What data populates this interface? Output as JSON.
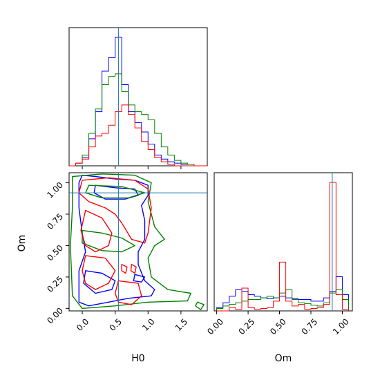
{
  "chart_data": [
    {
      "panel": "H0 marginal",
      "type": "histogram",
      "x_range": [
        -0.2,
        1.9
      ],
      "x_ticks": [
        0.0,
        0.5,
        1.0,
        1.5
      ],
      "truth_line": 0.55,
      "bin_edges": [
        -0.2,
        -0.1,
        0.0,
        0.1,
        0.2,
        0.3,
        0.4,
        0.5,
        0.6,
        0.7,
        0.8,
        0.9,
        1.0,
        1.1,
        1.2,
        1.3,
        1.4,
        1.5,
        1.6,
        1.7,
        1.8,
        1.9
      ],
      "series": [
        {
          "name": "blue",
          "color": "#0000ff",
          "counts": [
            0,
            2,
            6,
            20,
            40,
            70,
            80,
            95,
            60,
            40,
            32,
            25,
            16,
            8,
            5,
            3,
            2,
            1,
            1,
            0,
            0
          ]
        },
        {
          "name": "green",
          "color": "#008000",
          "counts": [
            0,
            2,
            8,
            24,
            42,
            60,
            66,
            68,
            55,
            45,
            40,
            38,
            34,
            24,
            14,
            8,
            4,
            2,
            1,
            0,
            0
          ]
        },
        {
          "name": "red",
          "color": "#ff0000",
          "counts": [
            0,
            2,
            5,
            14,
            22,
            24,
            30,
            40,
            45,
            38,
            28,
            18,
            12,
            6,
            3,
            1,
            0,
            0,
            0,
            0,
            0
          ]
        }
      ]
    },
    {
      "panel": "Om marginal",
      "type": "histogram",
      "x_range": [
        -0.02,
        1.08
      ],
      "x_ticks": [
        0.0,
        0.25,
        0.5,
        0.75,
        1.0
      ],
      "tick_labels": [
        "0.00",
        "0.25",
        "0.50",
        "0.75",
        "1.00"
      ],
      "xlabel": "Om",
      "truth_line": 0.92,
      "bin_edges": [
        0.0,
        0.05,
        0.1,
        0.15,
        0.2,
        0.25,
        0.3,
        0.35,
        0.4,
        0.45,
        0.5,
        0.55,
        0.6,
        0.65,
        0.7,
        0.75,
        0.8,
        0.85,
        0.9,
        0.95,
        1.0,
        1.05
      ],
      "series": [
        {
          "name": "blue",
          "color": "#0000ff",
          "counts": [
            4,
            10,
            18,
            26,
            24,
            20,
            18,
            16,
            15,
            16,
            18,
            16,
            15,
            14,
            14,
            12,
            12,
            16,
            24,
            42,
            20
          ]
        },
        {
          "name": "green",
          "color": "#008000",
          "counts": [
            3,
            6,
            8,
            10,
            12,
            14,
            14,
            16,
            18,
            16,
            22,
            26,
            14,
            10,
            9,
            7,
            6,
            10,
            22,
            26,
            14
          ]
        },
        {
          "name": "red",
          "color": "#ff0000",
          "counts": [
            0,
            0,
            4,
            2,
            28,
            4,
            2,
            3,
            4,
            12,
            60,
            12,
            6,
            8,
            2,
            3,
            4,
            8,
            158,
            20,
            2
          ]
        }
      ]
    },
    {
      "panel": "H0 vs Om joint",
      "type": "contour",
      "x_range": [
        -0.2,
        1.9
      ],
      "y_range": [
        -0.02,
        1.08
      ],
      "x_ticks": [
        0.0,
        0.5,
        1.0,
        1.5
      ],
      "y_ticks": [
        0.0,
        0.25,
        0.5,
        0.75,
        1.0
      ],
      "tick_labels_x": [
        "0.0",
        "0.5",
        "1.0",
        "1.5"
      ],
      "tick_labels_y": [
        "0.00",
        "0.25",
        "0.50",
        "0.75",
        "1.00"
      ],
      "xlabel": "H0",
      "ylabel": "Om",
      "truth_point": [
        0.55,
        0.92
      ],
      "series": [
        {
          "name": "blue",
          "color": "#0000ff",
          "contours": [
            [
              [
                0.0,
                1.06
              ],
              [
                0.2,
                1.05
              ],
              [
                0.5,
                1.03
              ],
              [
                0.8,
                1.02
              ],
              [
                1.0,
                0.98
              ],
              [
                1.0,
                0.9
              ],
              [
                0.9,
                0.82
              ],
              [
                0.95,
                0.7
              ],
              [
                0.95,
                0.55
              ],
              [
                0.85,
                0.45
              ],
              [
                0.85,
                0.35
              ],
              [
                0.95,
                0.22
              ],
              [
                1.1,
                0.15
              ],
              [
                1.05,
                0.1
              ],
              [
                0.7,
                0.08
              ],
              [
                0.4,
                0.05
              ],
              [
                0.1,
                0.02
              ],
              [
                -0.05,
                0.05
              ],
              [
                -0.05,
                0.3
              ],
              [
                0.05,
                0.45
              ],
              [
                0.0,
                0.6
              ],
              [
                -0.05,
                0.8
              ],
              [
                -0.05,
                1.0
              ],
              [
                0.0,
                1.06
              ]
            ],
            [
              [
                0.2,
                0.98
              ],
              [
                0.5,
                0.96
              ],
              [
                0.8,
                0.95
              ],
              [
                0.85,
                0.9
              ],
              [
                0.65,
                0.87
              ],
              [
                0.35,
                0.87
              ],
              [
                0.18,
                0.92
              ],
              [
                0.2,
                0.98
              ]
            ],
            [
              [
                0.05,
                0.3
              ],
              [
                0.3,
                0.28
              ],
              [
                0.5,
                0.22
              ],
              [
                0.45,
                0.15
              ],
              [
                0.2,
                0.12
              ],
              [
                0.02,
                0.2
              ],
              [
                0.05,
                0.3
              ]
            ],
            [
              [
                0.8,
                0.27
              ],
              [
                0.95,
                0.25
              ],
              [
                0.9,
                0.21
              ],
              [
                0.78,
                0.22
              ],
              [
                0.8,
                0.27
              ]
            ]
          ]
        },
        {
          "name": "green",
          "color": "#008000",
          "contours": [
            [
              [
                -0.15,
                1.05
              ],
              [
                0.3,
                1.07
              ],
              [
                0.8,
                1.06
              ],
              [
                1.05,
                1.0
              ],
              [
                1.0,
                0.85
              ],
              [
                1.1,
                0.65
              ],
              [
                1.25,
                0.55
              ],
              [
                1.1,
                0.5
              ],
              [
                1.0,
                0.4
              ],
              [
                1.05,
                0.25
              ],
              [
                1.3,
                0.15
              ],
              [
                1.65,
                0.12
              ],
              [
                1.6,
                0.06
              ],
              [
                1.0,
                0.05
              ],
              [
                0.5,
                0.02
              ],
              [
                0.0,
                0.0
              ],
              [
                -0.15,
                0.1
              ],
              [
                -0.18,
                0.5
              ],
              [
                -0.15,
                0.8
              ],
              [
                -0.15,
                1.05
              ]
            ],
            [
              [
                0.1,
                0.98
              ],
              [
                0.6,
                0.97
              ],
              [
                0.95,
                0.92
              ],
              [
                0.7,
                0.88
              ],
              [
                0.3,
                0.88
              ],
              [
                0.05,
                0.92
              ],
              [
                0.1,
                0.98
              ]
            ],
            [
              [
                0.0,
                0.62
              ],
              [
                0.3,
                0.6
              ],
              [
                0.6,
                0.56
              ],
              [
                0.8,
                0.5
              ],
              [
                0.6,
                0.45
              ],
              [
                0.3,
                0.46
              ],
              [
                0.0,
                0.52
              ],
              [
                0.0,
                0.62
              ]
            ],
            [
              [
                1.75,
                0.05
              ],
              [
                1.85,
                0.03
              ],
              [
                1.8,
                -0.01
              ],
              [
                1.72,
                0.02
              ],
              [
                1.75,
                0.05
              ]
            ]
          ]
        },
        {
          "name": "red",
          "color": "#ff0000",
          "contours": [
            [
              [
                0.0,
                1.02
              ],
              [
                0.4,
                1.04
              ],
              [
                0.8,
                1.02
              ],
              [
                1.0,
                0.95
              ],
              [
                1.05,
                0.8
              ],
              [
                1.0,
                0.6
              ],
              [
                0.95,
                0.52
              ],
              [
                0.75,
                0.55
              ],
              [
                0.6,
                0.68
              ],
              [
                0.5,
                0.75
              ],
              [
                0.35,
                0.8
              ],
              [
                0.1,
                0.85
              ],
              [
                -0.05,
                0.92
              ],
              [
                0.0,
                1.02
              ]
            ],
            [
              [
                0.05,
                0.78
              ],
              [
                0.3,
                0.72
              ],
              [
                0.45,
                0.6
              ],
              [
                0.4,
                0.5
              ],
              [
                0.2,
                0.45
              ],
              [
                0.05,
                0.5
              ],
              [
                -0.02,
                0.62
              ],
              [
                0.05,
                0.78
              ]
            ],
            [
              [
                0.05,
                0.42
              ],
              [
                0.35,
                0.4
              ],
              [
                0.5,
                0.3
              ],
              [
                0.4,
                0.2
              ],
              [
                0.2,
                0.15
              ],
              [
                0.05,
                0.2
              ],
              [
                0.0,
                0.3
              ],
              [
                0.05,
                0.42
              ]
            ],
            [
              [
                0.55,
                0.22
              ],
              [
                0.85,
                0.2
              ],
              [
                0.9,
                0.1
              ],
              [
                0.75,
                0.03
              ],
              [
                0.55,
                0.05
              ],
              [
                0.5,
                0.12
              ],
              [
                0.55,
                0.22
              ]
            ],
            [
              [
                0.6,
                0.35
              ],
              [
                0.68,
                0.33
              ],
              [
                0.66,
                0.28
              ],
              [
                0.6,
                0.3
              ],
              [
                0.6,
                0.35
              ]
            ],
            [
              [
                0.75,
                0.35
              ],
              [
                0.82,
                0.33
              ],
              [
                0.8,
                0.28
              ],
              [
                0.74,
                0.3
              ],
              [
                0.75,
                0.35
              ]
            ]
          ]
        }
      ]
    }
  ]
}
